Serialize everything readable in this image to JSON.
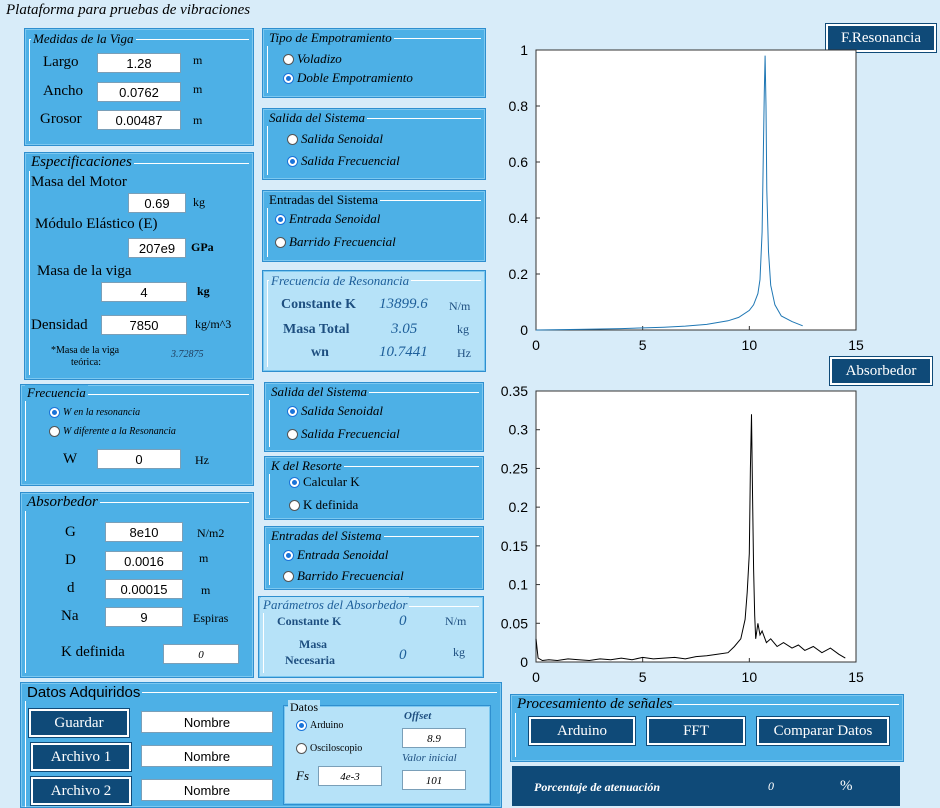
{
  "window": {
    "title": "Plataforma para pruebas de vibraciones"
  },
  "viga": {
    "title": "Medidas de la Viga",
    "largo": {
      "label": "Largo",
      "value": "1.28",
      "unit": "m"
    },
    "ancho": {
      "label": "Ancho",
      "value": "0.0762",
      "unit": "m"
    },
    "grosor": {
      "label": "Grosor",
      "value": "0.00487",
      "unit": "m"
    }
  },
  "espec": {
    "title": "Especificaciones",
    "masa_motor": {
      "label": "Masa del Motor",
      "value": "0.69",
      "unit": "kg"
    },
    "modulo": {
      "label": "Módulo Elástico (E)",
      "value": "207e9",
      "unit": "GPa"
    },
    "masa_viga": {
      "label": "Masa de la viga",
      "value": "4",
      "unit": "kg"
    },
    "densidad": {
      "label": "Densidad",
      "value": "7850",
      "unit": "kg/m^3"
    },
    "nota_line1": "*Masa de la viga",
    "nota_line2": "teórica:",
    "nota_value": "3.72875"
  },
  "empotramiento": {
    "title": "Tipo de Empotramiento",
    "opt1": "Voladizo",
    "opt2": "Doble Empotramiento"
  },
  "salida1": {
    "title": "Salida del Sistema",
    "opt1": "Salida Senoidal",
    "opt2": "Salida Frecuencial"
  },
  "entradas1": {
    "title": "Entradas del Sistema",
    "opt1": "Entrada Senoidal",
    "opt2": "Barrido Frecuencial"
  },
  "resonancia": {
    "title": "Frecuencia de Resonancia",
    "k_label": "Constante K",
    "k_value": "13899.6",
    "k_unit": "N/m",
    "m_label": "Masa Total",
    "m_value": "3.05",
    "m_unit": "kg",
    "wn_label": "wn",
    "wn_value": "10.7441",
    "wn_unit": "Hz"
  },
  "frecuencia": {
    "title": "Frecuencia",
    "opt1": "W en la resonancia",
    "opt2": "W diferente a la Resonancia",
    "w_label": "W",
    "w_value": "0",
    "w_unit": "Hz"
  },
  "salida2": {
    "title": "Salida del Sistema",
    "opt1": "Salida Senoidal",
    "opt2": "Salida Frecuencial"
  },
  "resorte": {
    "title": "K del Resorte",
    "opt1": "Calcular K",
    "opt2": "K definida"
  },
  "entradas2": {
    "title": "Entradas del Sistema",
    "opt1": "Entrada Senoidal",
    "opt2": "Barrido Frecuencial"
  },
  "absorbedor": {
    "title": "Absorbedor",
    "G": {
      "label": "G",
      "value": "8e10",
      "unit": "N/m2"
    },
    "D": {
      "label": "D",
      "value": "0.0016",
      "unit": "m"
    },
    "d": {
      "label": "d",
      "value": "0.00015",
      "unit": "m"
    },
    "Na": {
      "label": "Na",
      "value": "9",
      "unit": "Espiras"
    },
    "kdef_label": "K definida",
    "kdef_value": "0"
  },
  "param_abs": {
    "title": "Parámetros del Absorbedor",
    "k_label": "Constante K",
    "k_value": "0",
    "k_unit": "N/m",
    "m_label1": "Masa",
    "m_label2": "Necesaria",
    "m_value": "0",
    "m_unit": "kg"
  },
  "datos_adq": {
    "title": "Datos Adquiridos",
    "guardar": "Guardar",
    "archivo1": "Archivo 1",
    "archivo2": "Archivo 2",
    "nombre1": "Nombre",
    "nombre2": "Nombre",
    "nombre3": "Nombre",
    "datos_title": "Datos",
    "arduino": "Arduino",
    "osciloscopio": "Osciloscopio",
    "fs_label": "Fs",
    "fs_value": "4e-3",
    "offset_label": "Offset",
    "offset_value": "8.9",
    "vinicial_label": "Valor inicial",
    "vinicial_value": "101"
  },
  "procesamiento": {
    "title": "Procesamiento de señales",
    "arduino": "Arduino",
    "fft": "FFT",
    "comparar": "Comparar Datos",
    "porc_label": "Porcentaje de atenuación",
    "porc_value": "0",
    "porc_unit": "%"
  },
  "buttons": {
    "resonancia": "F.Resonancia",
    "absorbedor": "Absorbedor"
  },
  "chart_data": [
    {
      "type": "line",
      "color": "#1f77b4",
      "xlim": [
        0,
        15
      ],
      "ylim": [
        0,
        1
      ],
      "xticks": [
        "0",
        "5",
        "10",
        "15"
      ],
      "yticks": [
        "0",
        "0.2",
        "0.4",
        "0.6",
        "0.8",
        "1"
      ],
      "x": [
        0,
        2,
        4,
        6,
        7,
        8,
        9,
        9.5,
        10,
        10.2,
        10.4,
        10.5,
        10.6,
        10.65,
        10.7,
        10.74,
        10.78,
        10.82,
        10.9,
        11.0,
        11.2,
        11.5,
        12,
        12.5
      ],
      "y": [
        0.0,
        0.002,
        0.005,
        0.01,
        0.014,
        0.02,
        0.033,
        0.045,
        0.07,
        0.09,
        0.13,
        0.18,
        0.35,
        0.6,
        0.85,
        0.98,
        0.8,
        0.5,
        0.28,
        0.16,
        0.09,
        0.05,
        0.03,
        0.015
      ]
    },
    {
      "type": "line",
      "color": "#000000",
      "xlim": [
        0,
        15
      ],
      "ylim": [
        0,
        0.35
      ],
      "xticks": [
        "0",
        "5",
        "10",
        "15"
      ],
      "yticks": [
        "0",
        "0.05",
        "0.1",
        "0.15",
        "0.2",
        "0.25",
        "0.3",
        "0.35"
      ],
      "x": [
        0,
        0.1,
        0.3,
        0.6,
        1,
        1.5,
        2,
        2.5,
        3,
        3.5,
        4,
        4.5,
        5,
        5.5,
        6,
        6.5,
        7,
        7.5,
        8,
        8.5,
        9,
        9.3,
        9.6,
        9.8,
        9.9,
        10.0,
        10.05,
        10.1,
        10.15,
        10.2,
        10.25,
        10.3,
        10.4,
        10.5,
        10.6,
        10.8,
        11,
        11.3,
        11.6,
        12,
        12.3,
        12.6,
        13,
        13.4,
        13.8,
        14.2,
        14.5
      ],
      "y": [
        0.03,
        0.005,
        0.002,
        0.003,
        0.002,
        0.004,
        0.003,
        0.002,
        0.004,
        0.003,
        0.005,
        0.003,
        0.006,
        0.004,
        0.005,
        0.006,
        0.004,
        0.007,
        0.008,
        0.01,
        0.012,
        0.02,
        0.03,
        0.055,
        0.09,
        0.14,
        0.25,
        0.32,
        0.22,
        0.12,
        0.06,
        0.03,
        0.05,
        0.035,
        0.04,
        0.025,
        0.03,
        0.02,
        0.025,
        0.018,
        0.022,
        0.015,
        0.02,
        0.012,
        0.018,
        0.01,
        0.005
      ]
    }
  ]
}
